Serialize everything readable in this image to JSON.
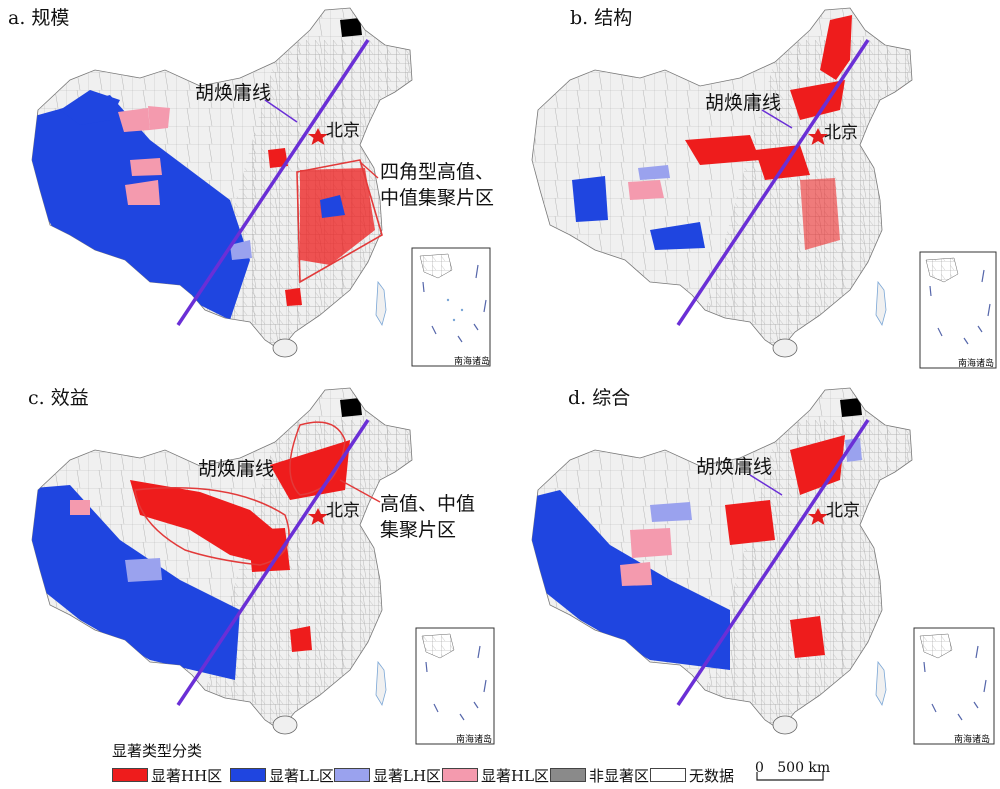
{
  "colors": {
    "hh": "#ee1c1c",
    "ll": "#1f45e0",
    "lh": "#9aa2ee",
    "hl": "#f49aae",
    "ns": "#8a8a8a",
    "nd": "#ffffff",
    "base": "#f0f0f0",
    "hu_line": "#6a2fd6"
  },
  "icons": [
    "beijing-star-icon",
    "arrow-icon",
    "north-arrow-free-inset"
  ],
  "panels": [
    {
      "title": "a. 规模",
      "line_label": "胡焕庸线",
      "beijing": "北京",
      "inset_label": "南海诸岛",
      "callout": [
        "四角型高值、",
        "中值集聚片区"
      ]
    },
    {
      "title": "b. 结构",
      "line_label": "胡焕庸线",
      "beijing": "北京",
      "inset_label": "南海诸岛"
    },
    {
      "title": "c. 效益",
      "line_label": "胡焕庸线",
      "beijing": "北京",
      "inset_label": "南海诸岛",
      "callout": [
        "高值、中值",
        "集聚片区"
      ]
    },
    {
      "title": "d. 综合",
      "line_label": "胡焕庸线",
      "beijing": "北京",
      "inset_label": "南海诸岛"
    }
  ],
  "legend": {
    "title": "显著类型分类",
    "items": [
      {
        "key": "hh",
        "label": "显著HH区"
      },
      {
        "key": "ll",
        "label": "显著LL区"
      },
      {
        "key": "lh",
        "label": "显著LH区"
      },
      {
        "key": "hl",
        "label": "显著HL区"
      },
      {
        "key": "ns",
        "label": "非显著区"
      },
      {
        "key": "nd",
        "label": "无数据"
      }
    ],
    "scale_label": "0   500 km"
  }
}
